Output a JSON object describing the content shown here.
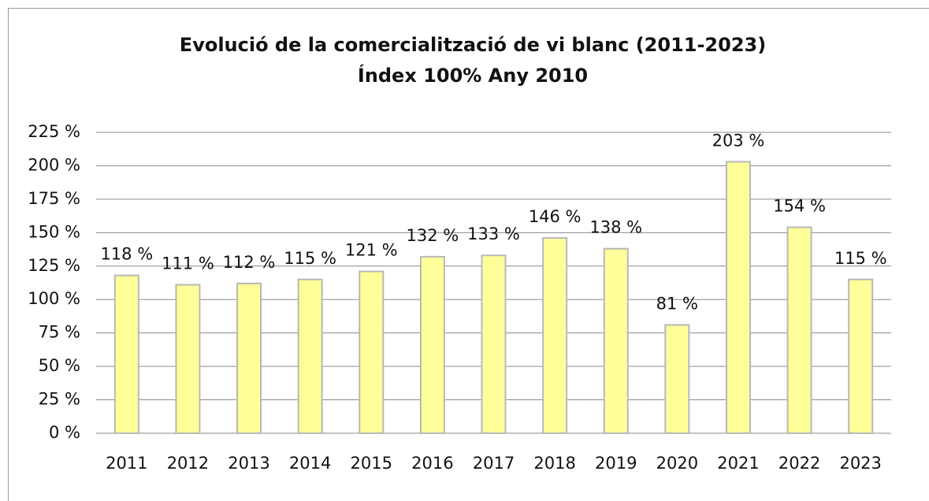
{
  "chart_data": {
    "type": "bar",
    "title": "Evolució de la comercialització de  vi blanc (2011-2023)",
    "subtitle": "Índex 100%  Any  2010",
    "categories": [
      "2011",
      "2012",
      "2013",
      "2014",
      "2015",
      "2016",
      "2017",
      "2018",
      "2019",
      "2020",
      "2021",
      "2022",
      "2023"
    ],
    "values": [
      118,
      111,
      112,
      115,
      121,
      132,
      133,
      146,
      138,
      81,
      203,
      154,
      115
    ],
    "value_labels": [
      "118 %",
      "111 %",
      "112 %",
      "115 %",
      "121 %",
      "132 %",
      "133 %",
      "146 %",
      "138 %",
      "81 %",
      "203 %",
      "154 %",
      "115 %"
    ],
    "color": "#ffff99",
    "ylim": [
      0,
      225
    ],
    "yticks": [
      {
        "value": 0,
        "label": "0 %"
      },
      {
        "value": 25,
        "label": "25 %"
      },
      {
        "value": 50,
        "label": "50 %"
      },
      {
        "value": 75,
        "label": "75 %"
      },
      {
        "value": 100,
        "label": "100 %"
      },
      {
        "value": 125,
        "label": "125 %"
      },
      {
        "value": 150,
        "label": "150 %"
      },
      {
        "value": 175,
        "label": "175 %"
      },
      {
        "value": 200,
        "label": "200 %"
      },
      {
        "value": 225,
        "label": "225 %"
      }
    ],
    "grid": true
  }
}
